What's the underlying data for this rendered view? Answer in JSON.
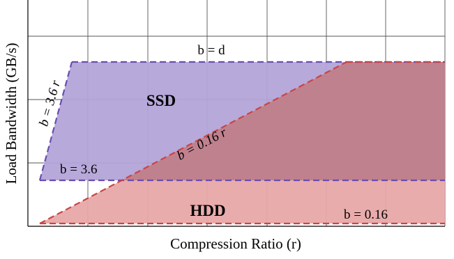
{
  "figure": {
    "xlabel": "Compression Ratio (r)",
    "ylabel": "Load Bandwidth (GB/s)",
    "grid": true,
    "regions": [
      {
        "name": "SSD",
        "fill": "#b3a4d8",
        "stroke": "#6a4db0"
      },
      {
        "name": "HDD",
        "fill": "#e8a8a8",
        "stroke": "#c94545"
      }
    ],
    "overlap_fill": "#c0818e",
    "annotations": {
      "b_eq_d": "b = d",
      "b_eq_3_6_r": "b = 3.6 r",
      "b_eq_3_6": "b = 3.6",
      "b_eq_0_16_r": "b = 0.16 r",
      "b_eq_0_16": "b = 0.16"
    }
  }
}
